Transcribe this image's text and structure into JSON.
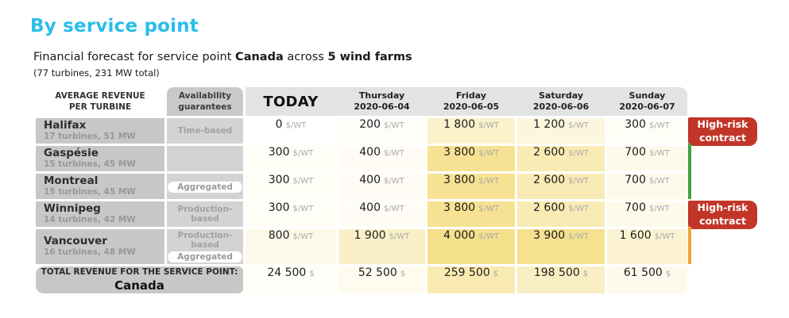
{
  "page": {
    "title": "By service point",
    "subtitle": {
      "prefix": "Financial forecast for service point ",
      "service_point": "Canada",
      "middle": " across ",
      "farms": "5 wind farms",
      "detail": "(77 turbines, 231 MW total)"
    },
    "colors": {
      "accent": "#29bdea",
      "high_risk": "#c23529",
      "low_risk": "#3fa142",
      "medium_risk": "#f0a236",
      "heat_yellow": "#f5e08c"
    }
  },
  "table": {
    "col1_header": {
      "line1": "AVERAGE REVENUE",
      "line2": "PER TURBINE"
    },
    "col2_header": {
      "line1": "Availability",
      "line2": "guarantees"
    },
    "day_columns": [
      {
        "label": "TODAY",
        "date": ""
      },
      {
        "label": "Thursday",
        "date": "2020-06-04"
      },
      {
        "label": "Friday",
        "date": "2020-06-05"
      },
      {
        "label": "Saturday",
        "date": "2020-06-06"
      },
      {
        "label": "Sunday",
        "date": "2020-06-07"
      }
    ],
    "unit_per_turbine": "$/WT",
    "unit_total": "$",
    "aggregated_label": "Aggregated",
    "badge": {
      "line1": "High-risk",
      "line2": "contract"
    },
    "rows": [
      {
        "name": "Halifax",
        "info": "17 turbines, 51 MW",
        "availability": "Time-based",
        "aggregated": false,
        "values": [
          0,
          200,
          1800,
          1200,
          300
        ],
        "risk": "high"
      },
      {
        "name": "Gaspésie",
        "info": "15 turbines, 45 MW",
        "availability": "",
        "aggregated": false,
        "values": [
          300,
          400,
          3800,
          2600,
          700
        ],
        "risk": "low"
      },
      {
        "name": "Montreal",
        "info": "15 turbines, 45 MW",
        "availability": "",
        "aggregated": true,
        "values": [
          300,
          400,
          3800,
          2600,
          700
        ],
        "risk": "low"
      },
      {
        "name": "Winnipeg",
        "info": "14 turbines, 42 MW",
        "availability": "Production-based",
        "aggregated": false,
        "values": [
          300,
          400,
          3800,
          2600,
          700
        ],
        "risk": "high"
      },
      {
        "name": "Vancouver",
        "info": "16 turbines, 48 MW",
        "availability": "Production-based",
        "aggregated": true,
        "values": [
          800,
          1900,
          4000,
          3900,
          1600
        ],
        "risk": "medium"
      }
    ],
    "total": {
      "label": "TOTAL REVENUE FOR THE SERVICE POINT:",
      "name": "Canada",
      "values": [
        24500,
        52500,
        259500,
        198500,
        61500
      ]
    },
    "turbine_count": 77,
    "heat_max_per_turbine": 4000
  }
}
